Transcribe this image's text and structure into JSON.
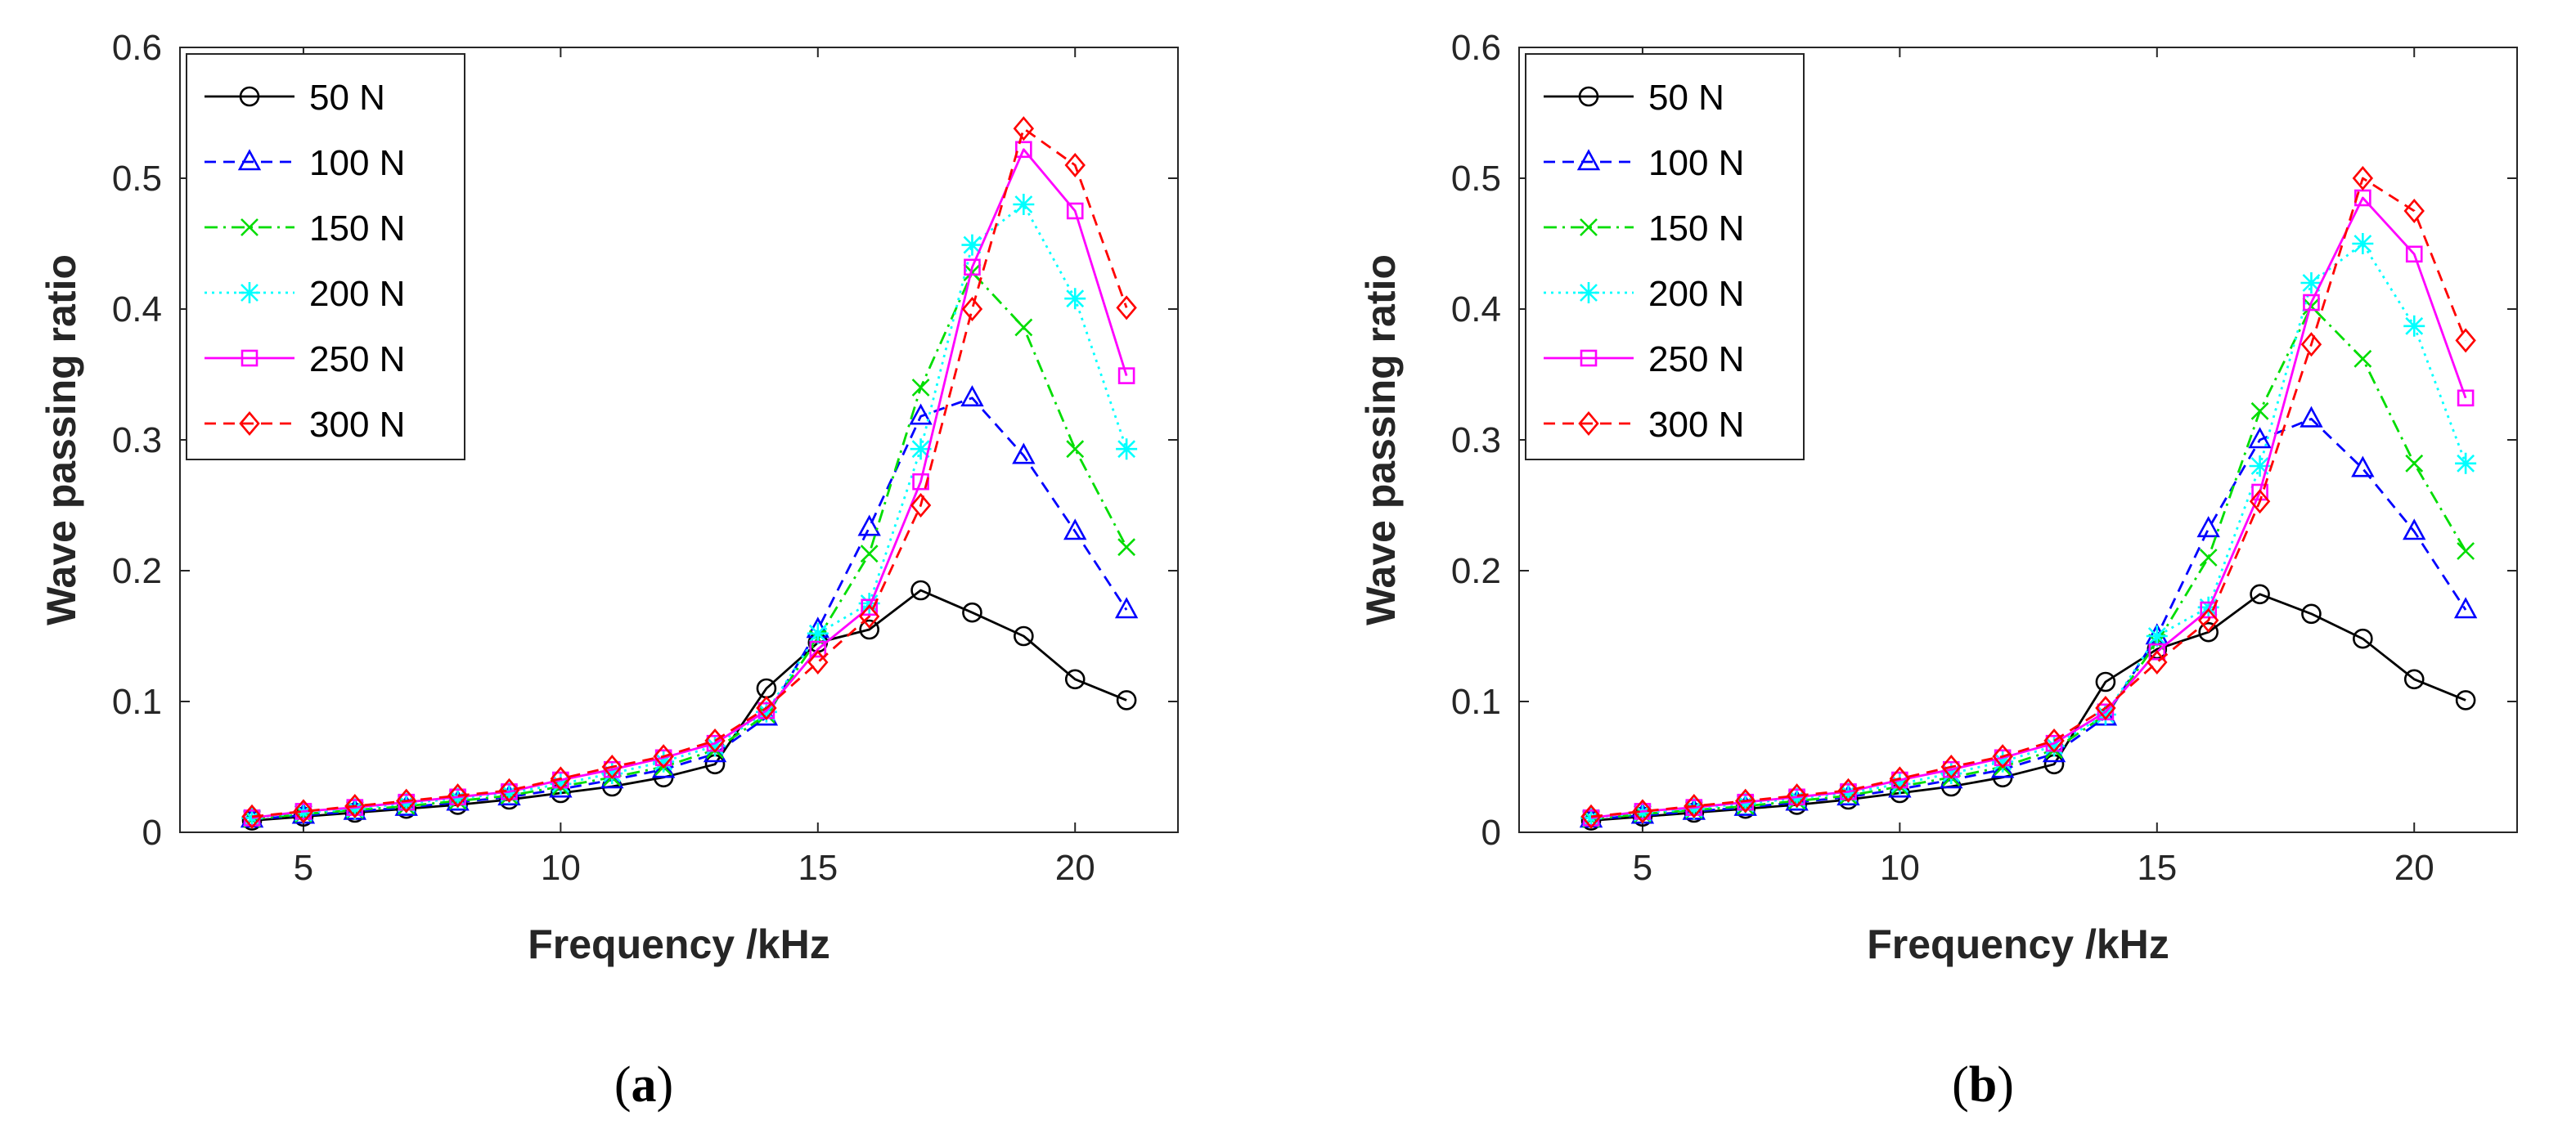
{
  "chart_data": [
    {
      "type": "line",
      "panel_label": "a",
      "xlabel": "Frequency /kHz",
      "ylabel": "Wave passing ratio",
      "xlim": [
        2.6,
        22
      ],
      "ylim": [
        0,
        0.6
      ],
      "xticks": [
        5,
        10,
        15,
        20
      ],
      "yticks": [
        0,
        0.1,
        0.2,
        0.3,
        0.4,
        0.5,
        0.6
      ],
      "legend_position": "top-left",
      "x": [
        4,
        5,
        6,
        7,
        8,
        9,
        10,
        11,
        12,
        13,
        14,
        15,
        16,
        17,
        18,
        19,
        20,
        21
      ],
      "series": [
        {
          "name": "50 N",
          "color": "#000000",
          "marker": "circle",
          "line": "solid",
          "values": [
            0.009,
            0.012,
            0.015,
            0.018,
            0.021,
            0.025,
            0.03,
            0.035,
            0.042,
            0.052,
            0.11,
            0.145,
            0.155,
            0.185,
            0.168,
            0.15,
            0.117,
            0.101
          ]
        },
        {
          "name": "100 N",
          "color": "#0000ff",
          "marker": "triangle",
          "line": "dashed",
          "values": [
            0.01,
            0.013,
            0.016,
            0.019,
            0.023,
            0.027,
            0.033,
            0.04,
            0.048,
            0.06,
            0.088,
            0.155,
            0.233,
            0.318,
            0.332,
            0.288,
            0.23,
            0.17
          ]
        },
        {
          "name": "150 N",
          "color": "#00dd00",
          "marker": "x",
          "line": "dashdot",
          "values": [
            0.01,
            0.014,
            0.017,
            0.02,
            0.024,
            0.028,
            0.035,
            0.042,
            0.05,
            0.063,
            0.09,
            0.148,
            0.213,
            0.34,
            0.428,
            0.386,
            0.293,
            0.218
          ]
        },
        {
          "name": "200 N",
          "color": "#00ffff",
          "marker": "star",
          "line": "dotted",
          "values": [
            0.011,
            0.015,
            0.018,
            0.022,
            0.026,
            0.03,
            0.037,
            0.045,
            0.054,
            0.066,
            0.092,
            0.152,
            0.175,
            0.293,
            0.449,
            0.48,
            0.408,
            0.293
          ]
        },
        {
          "name": "250 N",
          "color": "#ff00ff",
          "marker": "square",
          "line": "solid",
          "values": [
            0.011,
            0.016,
            0.019,
            0.023,
            0.027,
            0.031,
            0.04,
            0.048,
            0.057,
            0.068,
            0.093,
            0.14,
            0.172,
            0.268,
            0.432,
            0.522,
            0.475,
            0.349
          ]
        },
        {
          "name": "300 N",
          "color": "#ff0000",
          "marker": "diamond",
          "line": "dashed",
          "values": [
            0.012,
            0.016,
            0.02,
            0.024,
            0.028,
            0.032,
            0.041,
            0.05,
            0.058,
            0.07,
            0.095,
            0.13,
            0.165,
            0.25,
            0.4,
            0.538,
            0.51,
            0.401
          ]
        }
      ]
    },
    {
      "type": "line",
      "panel_label": "b",
      "xlabel": "Frequency /kHz",
      "ylabel": "Wave passing ratio",
      "xlim": [
        2.6,
        22
      ],
      "ylim": [
        0,
        0.6
      ],
      "xticks": [
        5,
        10,
        15,
        20
      ],
      "yticks": [
        0,
        0.1,
        0.2,
        0.3,
        0.4,
        0.5,
        0.6
      ],
      "legend_position": "top-left",
      "x": [
        4,
        5,
        6,
        7,
        8,
        9,
        10,
        11,
        12,
        13,
        14,
        15,
        16,
        17,
        18,
        19,
        20,
        21
      ],
      "series": [
        {
          "name": "50 N",
          "color": "#000000",
          "marker": "circle",
          "line": "solid",
          "values": [
            0.009,
            0.012,
            0.015,
            0.018,
            0.021,
            0.025,
            0.03,
            0.035,
            0.042,
            0.052,
            0.115,
            0.14,
            0.153,
            0.182,
            0.167,
            0.148,
            0.117,
            0.101
          ]
        },
        {
          "name": "100 N",
          "color": "#0000ff",
          "marker": "triangle",
          "line": "dashed",
          "values": [
            0.01,
            0.013,
            0.016,
            0.019,
            0.023,
            0.027,
            0.033,
            0.04,
            0.048,
            0.06,
            0.088,
            0.15,
            0.232,
            0.3,
            0.316,
            0.278,
            0.23,
            0.17
          ]
        },
        {
          "name": "150 N",
          "color": "#00dd00",
          "marker": "x",
          "line": "dashdot",
          "values": [
            0.01,
            0.014,
            0.017,
            0.02,
            0.024,
            0.028,
            0.035,
            0.042,
            0.05,
            0.063,
            0.09,
            0.145,
            0.21,
            0.322,
            0.402,
            0.362,
            0.282,
            0.215
          ]
        },
        {
          "name": "200 N",
          "color": "#00ffff",
          "marker": "star",
          "line": "dotted",
          "values": [
            0.011,
            0.015,
            0.018,
            0.022,
            0.026,
            0.03,
            0.037,
            0.045,
            0.054,
            0.066,
            0.09,
            0.15,
            0.172,
            0.28,
            0.42,
            0.45,
            0.387,
            0.282
          ]
        },
        {
          "name": "250 N",
          "color": "#ff00ff",
          "marker": "square",
          "line": "solid",
          "values": [
            0.011,
            0.016,
            0.019,
            0.023,
            0.027,
            0.031,
            0.04,
            0.048,
            0.057,
            0.068,
            0.092,
            0.138,
            0.17,
            0.26,
            0.405,
            0.485,
            0.442,
            0.332
          ]
        },
        {
          "name": "300 N",
          "color": "#ff0000",
          "marker": "diamond",
          "line": "dashed",
          "values": [
            0.012,
            0.016,
            0.02,
            0.024,
            0.028,
            0.032,
            0.041,
            0.05,
            0.058,
            0.07,
            0.095,
            0.13,
            0.162,
            0.253,
            0.373,
            0.5,
            0.475,
            0.376
          ]
        }
      ]
    }
  ]
}
